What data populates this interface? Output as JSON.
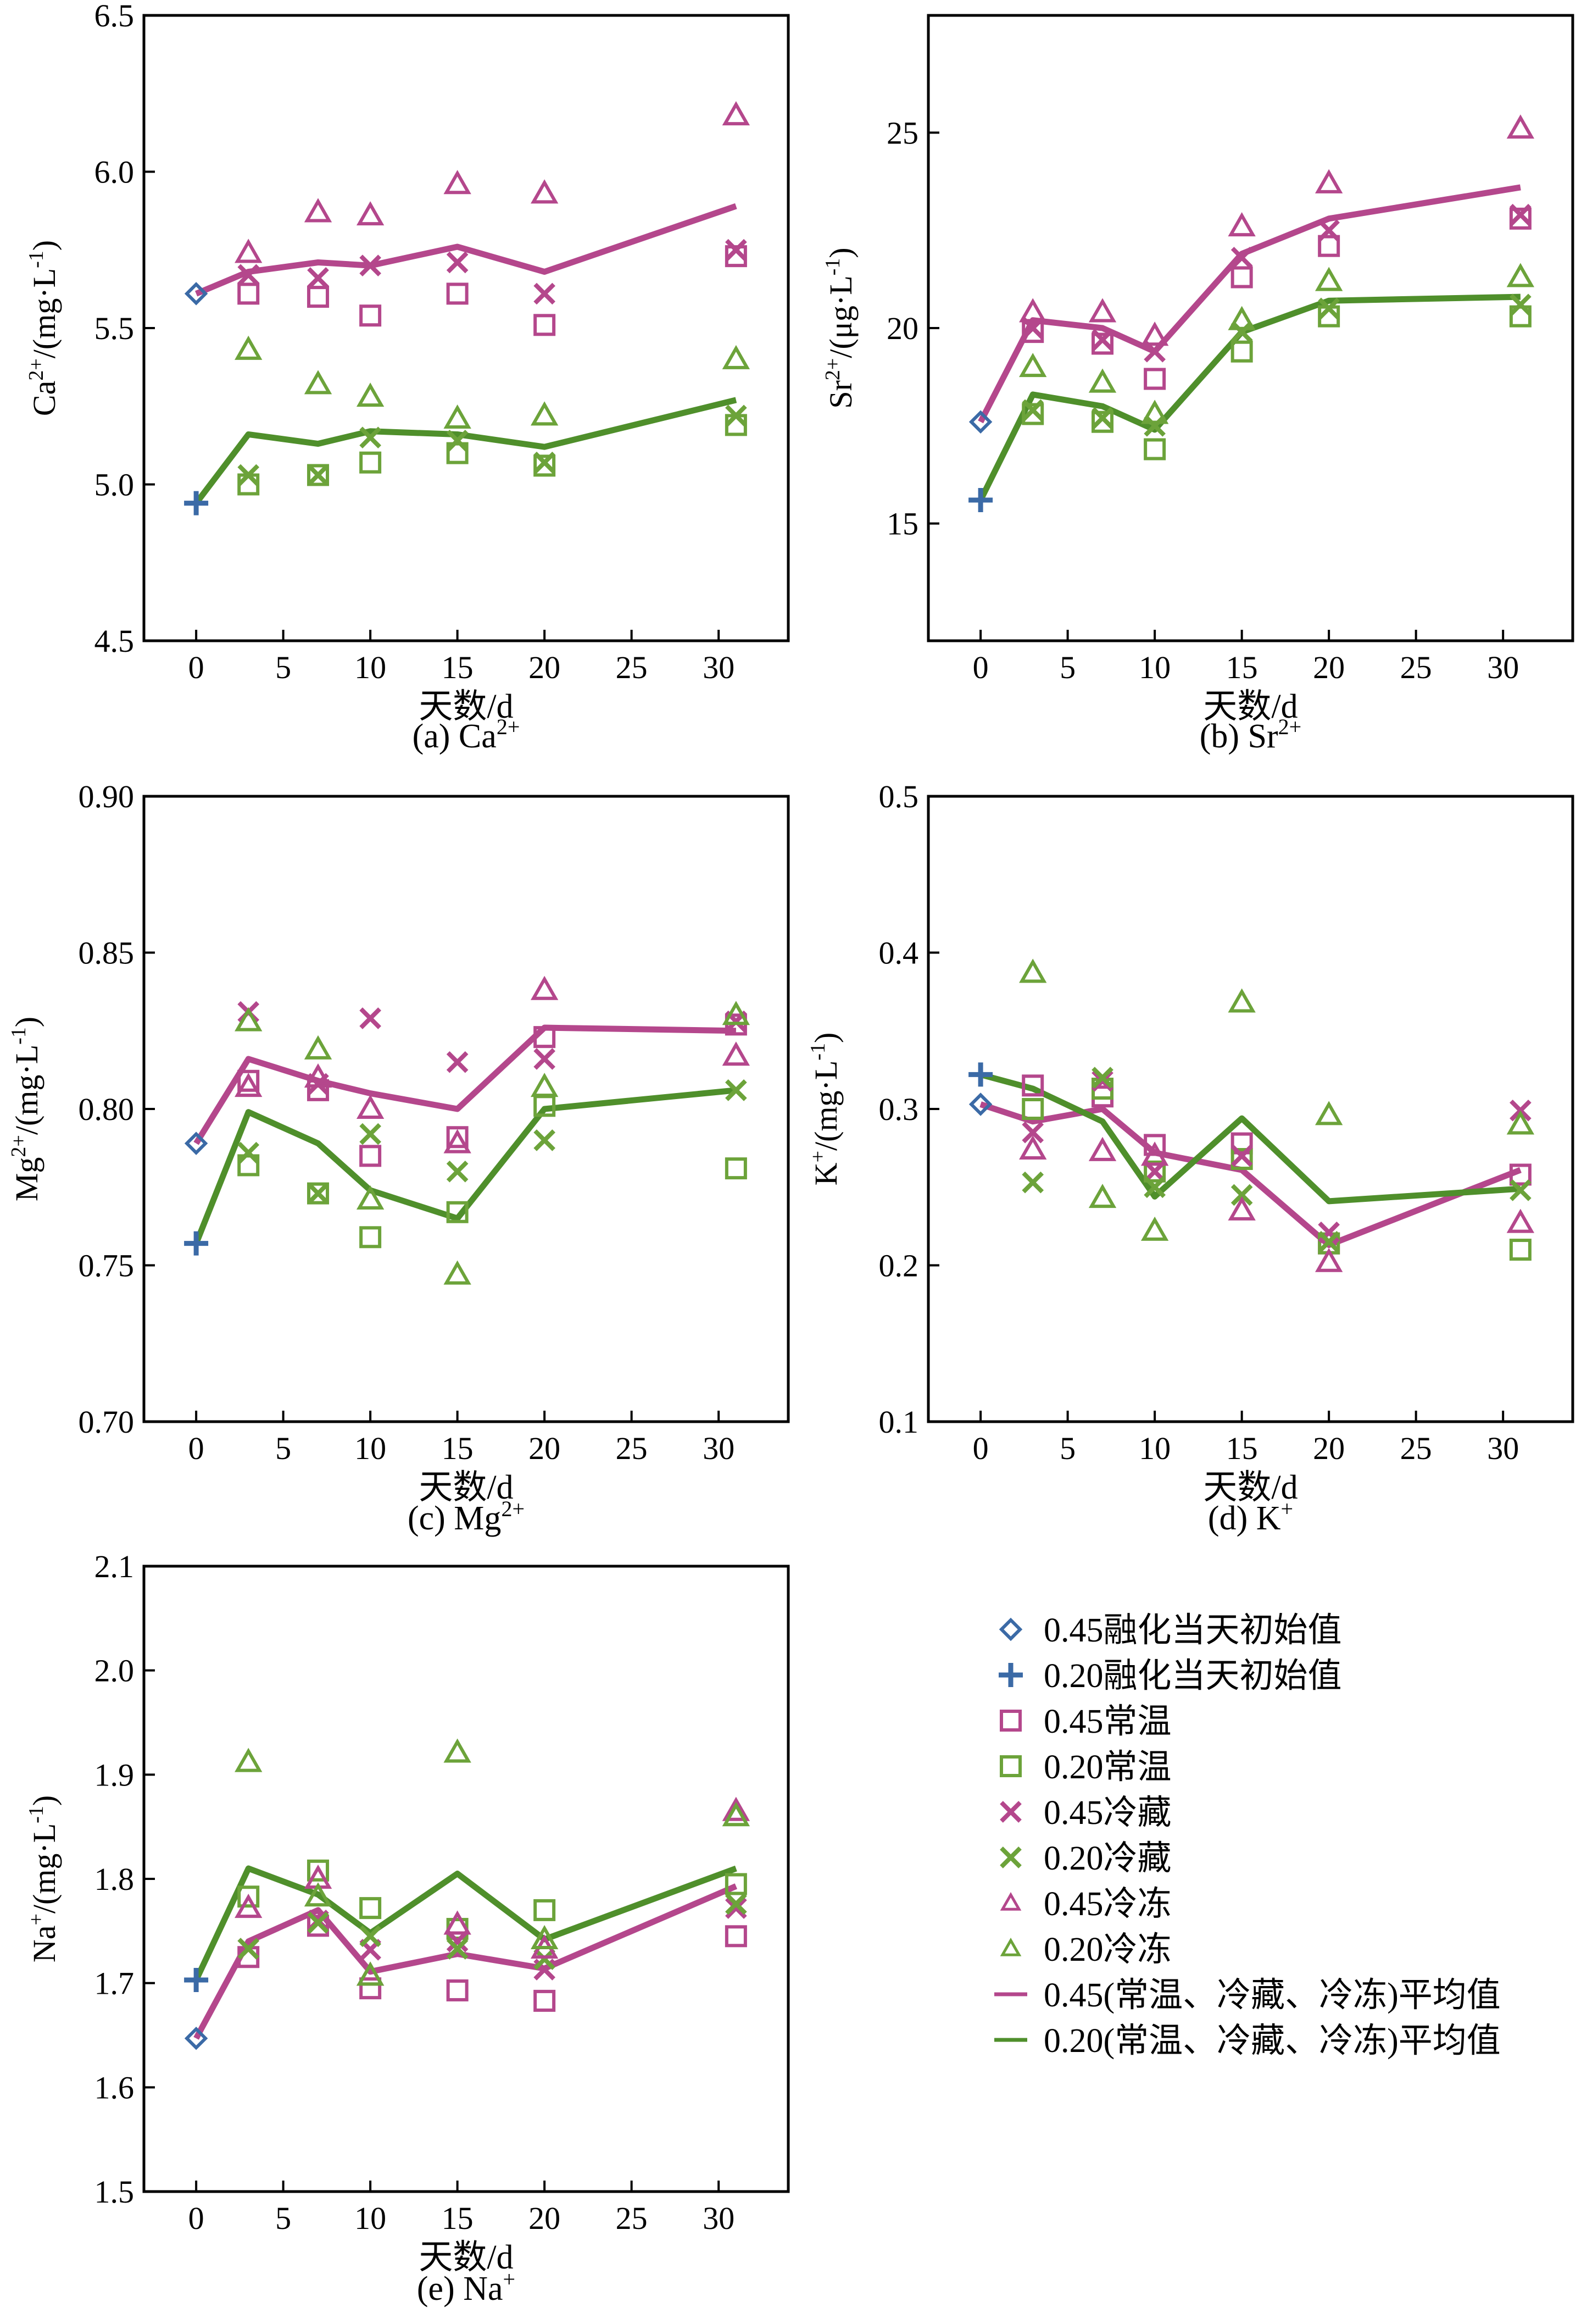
{
  "figure": {
    "xlabel": "天数/d",
    "x_ticks": [
      0,
      5,
      10,
      15,
      20,
      25,
      30
    ],
    "xlim": [
      -3,
      34
    ],
    "colors": {
      "c45": "#b4478c",
      "c20": "#6ca33a",
      "init45": "#3b6aa6",
      "init20": "#3b6aa6",
      "line45": "#b4478c",
      "line20": "#4f8f2b"
    }
  },
  "legend": {
    "items": [
      {
        "key": "init45",
        "label": "0.45融化当天初始值",
        "symbol": "diamond",
        "color": "#3b6aa6"
      },
      {
        "key": "init20",
        "label": "0.20融化当天初始值",
        "symbol": "plus",
        "color": "#3b6aa6"
      },
      {
        "key": "room45",
        "label": "0.45常温",
        "symbol": "square",
        "color": "#b4478c"
      },
      {
        "key": "room20",
        "label": "0.20常温",
        "symbol": "square",
        "color": "#6ca33a"
      },
      {
        "key": "fridge45",
        "label": "0.45冷藏",
        "symbol": "x",
        "color": "#b4478c"
      },
      {
        "key": "fridge20",
        "label": "0.20冷藏",
        "symbol": "x",
        "color": "#6ca33a"
      },
      {
        "key": "frozen45",
        "label": "0.45冷冻",
        "symbol": "triangle-small",
        "color": "#b4478c"
      },
      {
        "key": "frozen20",
        "label": "0.20冷冻",
        "symbol": "triangle-small",
        "color": "#6ca33a"
      },
      {
        "key": "avg45",
        "label": "0.45(常温、冷藏、冷冻)平均值",
        "symbol": "line",
        "color": "#b4478c"
      },
      {
        "key": "avg20",
        "label": "0.20(常温、冷藏、冷冻)平均值",
        "symbol": "line",
        "color": "#4f8f2b"
      }
    ]
  },
  "chart_data": [
    {
      "id": "a",
      "type": "scatter",
      "caption_main": "(a) Ca",
      "caption_sup": "2+",
      "ylabel_main": "Ca",
      "ylabel_sup": "2+",
      "ylabel_rest": "/(mg·L",
      "ylabel_sup2": "-1",
      "ylabel_end": ")",
      "ylim": [
        4.5,
        6.5
      ],
      "y_ticks": [
        "4.5",
        "5.0",
        "5.5",
        "6.0",
        "6.5"
      ],
      "x": [
        0,
        3,
        7,
        10,
        15,
        20,
        31
      ],
      "series": [
        {
          "key": "init45",
          "x": [
            0
          ],
          "values": [
            5.61
          ]
        },
        {
          "key": "init20",
          "x": [
            0
          ],
          "values": [
            4.94
          ]
        },
        {
          "key": "room45",
          "x": [
            3,
            7,
            10,
            15,
            20,
            31
          ],
          "values": [
            5.61,
            5.6,
            5.54,
            5.61,
            5.51,
            5.73
          ]
        },
        {
          "key": "room20",
          "x": [
            3,
            7,
            10,
            15,
            20,
            31
          ],
          "values": [
            5.0,
            5.03,
            5.07,
            5.1,
            5.06,
            5.19
          ]
        },
        {
          "key": "fridge45",
          "x": [
            3,
            7,
            10,
            15,
            20,
            31
          ],
          "values": [
            5.67,
            5.66,
            5.7,
            5.71,
            5.61,
            5.75
          ]
        },
        {
          "key": "fridge20",
          "x": [
            3,
            7,
            10,
            15,
            20,
            31
          ],
          "values": [
            5.03,
            5.03,
            5.15,
            5.14,
            5.07,
            5.22
          ]
        },
        {
          "key": "frozen45",
          "x": [
            3,
            7,
            10,
            15,
            20,
            31
          ],
          "values": [
            5.74,
            5.87,
            5.86,
            5.96,
            5.93,
            6.18
          ]
        },
        {
          "key": "frozen20",
          "x": [
            3,
            7,
            10,
            15,
            20,
            31
          ],
          "values": [
            5.43,
            5.32,
            5.28,
            5.21,
            5.22,
            5.4
          ]
        },
        {
          "key": "avg45",
          "x": [
            0,
            3,
            7,
            10,
            15,
            20,
            31
          ],
          "values": [
            5.61,
            5.68,
            5.71,
            5.7,
            5.76,
            5.68,
            5.89
          ]
        },
        {
          "key": "avg20",
          "x": [
            0,
            3,
            7,
            10,
            15,
            20,
            31
          ],
          "values": [
            4.94,
            5.16,
            5.13,
            5.17,
            5.16,
            5.12,
            5.27
          ]
        }
      ]
    },
    {
      "id": "b",
      "type": "scatter",
      "caption_main": "(b) Sr",
      "caption_sup": "2+",
      "ylabel_main": "Sr",
      "ylabel_sup": "2+",
      "ylabel_rest": "/(μg·L",
      "ylabel_sup2": "-1",
      "ylabel_end": ")",
      "ylim": [
        12,
        28
      ],
      "y_ticks": [
        "15",
        "20",
        "25"
      ],
      "y_tick_values": [
        15,
        20,
        25
      ],
      "x": [
        0,
        3,
        7,
        10,
        15,
        20,
        31
      ],
      "series": [
        {
          "key": "init45",
          "x": [
            0
          ],
          "values": [
            17.6
          ]
        },
        {
          "key": "init20",
          "x": [
            0
          ],
          "values": [
            15.6
          ]
        },
        {
          "key": "room45",
          "x": [
            3,
            7,
            10,
            15,
            20,
            31
          ],
          "values": [
            19.9,
            19.6,
            18.7,
            21.3,
            22.1,
            22.8
          ]
        },
        {
          "key": "room20",
          "x": [
            3,
            7,
            10,
            15,
            20,
            31
          ],
          "values": [
            17.8,
            17.6,
            16.9,
            19.4,
            20.3,
            20.3
          ]
        },
        {
          "key": "fridge45",
          "x": [
            3,
            7,
            10,
            15,
            20,
            31
          ],
          "values": [
            20.0,
            19.7,
            19.4,
            21.8,
            22.5,
            22.9
          ]
        },
        {
          "key": "fridge20",
          "x": [
            3,
            7,
            10,
            15,
            20,
            31
          ],
          "values": [
            17.9,
            17.7,
            17.5,
            19.9,
            20.5,
            20.6
          ]
        },
        {
          "key": "frozen45",
          "x": [
            3,
            7,
            10,
            15,
            20,
            31
          ],
          "values": [
            20.4,
            20.4,
            19.8,
            22.6,
            23.7,
            25.1
          ]
        },
        {
          "key": "frozen20",
          "x": [
            3,
            7,
            10,
            15,
            20,
            31
          ],
          "values": [
            19.0,
            18.6,
            17.8,
            20.2,
            21.2,
            21.3
          ]
        },
        {
          "key": "avg45",
          "x": [
            0,
            3,
            7,
            10,
            15,
            20,
            31
          ],
          "values": [
            17.6,
            20.2,
            20.0,
            19.4,
            21.9,
            22.8,
            23.6
          ]
        },
        {
          "key": "avg20",
          "x": [
            0,
            3,
            7,
            10,
            15,
            20,
            31
          ],
          "values": [
            15.6,
            18.3,
            18.0,
            17.4,
            19.9,
            20.7,
            20.8
          ]
        }
      ]
    },
    {
      "id": "c",
      "type": "scatter",
      "caption_main": "(c) Mg",
      "caption_sup": "2+",
      "ylabel_main": "Mg",
      "ylabel_sup": "2+",
      "ylabel_rest": "/(mg·L",
      "ylabel_sup2": "-1",
      "ylabel_end": ")",
      "ylim": [
        0.7,
        0.9
      ],
      "y_ticks": [
        "0.70",
        "0.75",
        "0.80",
        "0.85",
        "0.90"
      ],
      "x": [
        0,
        3,
        7,
        10,
        15,
        20,
        31
      ],
      "series": [
        {
          "key": "init45",
          "x": [
            0
          ],
          "values": [
            0.789
          ]
        },
        {
          "key": "init20",
          "x": [
            0
          ],
          "values": [
            0.757
          ]
        },
        {
          "key": "room45",
          "x": [
            3,
            7,
            10,
            15,
            20,
            31
          ],
          "values": [
            0.809,
            0.806,
            0.785,
            0.791,
            0.823,
            0.827
          ]
        },
        {
          "key": "room20",
          "x": [
            3,
            7,
            10,
            15,
            20,
            31
          ],
          "values": [
            0.782,
            0.773,
            0.759,
            0.767,
            0.801,
            0.781
          ]
        },
        {
          "key": "fridge45",
          "x": [
            3,
            7,
            10,
            15,
            20,
            31
          ],
          "values": [
            0.831,
            0.808,
            0.829,
            0.815,
            0.816,
            0.828
          ]
        },
        {
          "key": "fridge20",
          "x": [
            3,
            7,
            10,
            15,
            20,
            31
          ],
          "values": [
            0.786,
            0.773,
            0.792,
            0.78,
            0.79,
            0.806
          ]
        },
        {
          "key": "frozen45",
          "x": [
            3,
            7,
            10,
            15,
            20,
            31
          ],
          "values": [
            0.807,
            0.81,
            0.8,
            0.789,
            0.838,
            0.817
          ]
        },
        {
          "key": "frozen20",
          "x": [
            3,
            7,
            10,
            15,
            20,
            31
          ],
          "values": [
            0.828,
            0.819,
            0.771,
            0.747,
            0.807,
            0.83
          ]
        },
        {
          "key": "avg45",
          "x": [
            0,
            3,
            7,
            10,
            15,
            20,
            31
          ],
          "values": [
            0.789,
            0.816,
            0.809,
            0.805,
            0.8,
            0.826,
            0.825
          ]
        },
        {
          "key": "avg20",
          "x": [
            0,
            3,
            7,
            10,
            15,
            20,
            31
          ],
          "values": [
            0.757,
            0.799,
            0.789,
            0.774,
            0.765,
            0.8,
            0.806
          ]
        }
      ]
    },
    {
      "id": "d",
      "type": "scatter",
      "caption_main": "(d) K",
      "caption_sup": "+",
      "ylabel_main": "K",
      "ylabel_sup": "+",
      "ylabel_rest": "/(mg·L",
      "ylabel_sup2": "-1",
      "ylabel_end": ")",
      "ylim": [
        0.1,
        0.5
      ],
      "y_ticks": [
        "0.1",
        "0.2",
        "0.3",
        "0.4",
        "0.5"
      ],
      "x": [
        0,
        3,
        7,
        10,
        15,
        20,
        31
      ],
      "series": [
        {
          "key": "init45",
          "x": [
            0
          ],
          "values": [
            0.303
          ]
        },
        {
          "key": "init20",
          "x": [
            0
          ],
          "values": [
            0.322
          ]
        },
        {
          "key": "room45",
          "x": [
            3,
            7,
            10,
            15,
            20,
            31
          ],
          "values": [
            0.315,
            0.308,
            0.277,
            0.278,
            0.214,
            0.258
          ]
        },
        {
          "key": "room20",
          "x": [
            3,
            7,
            10,
            15,
            20,
            31
          ],
          "values": [
            0.3,
            0.313,
            0.26,
            0.268,
            0.214,
            0.21
          ]
        },
        {
          "key": "fridge45",
          "x": [
            3,
            7,
            10,
            15,
            20,
            31
          ],
          "values": [
            0.285,
            0.318,
            0.26,
            0.27,
            0.221,
            0.299
          ]
        },
        {
          "key": "fridge20",
          "x": [
            3,
            7,
            10,
            15,
            20,
            31
          ],
          "values": [
            0.253,
            0.32,
            0.25,
            0.245,
            0.215,
            0.248
          ]
        },
        {
          "key": "frozen45",
          "x": [
            3,
            7,
            10,
            15,
            20,
            31
          ],
          "values": [
            0.274,
            0.273,
            0.27,
            0.235,
            0.202,
            0.227
          ]
        },
        {
          "key": "frozen20",
          "x": [
            3,
            7,
            10,
            15,
            20,
            31
          ],
          "values": [
            0.387,
            0.243,
            0.222,
            0.368,
            0.296,
            0.29
          ]
        },
        {
          "key": "avg45",
          "x": [
            0,
            3,
            7,
            10,
            15,
            20,
            31
          ],
          "values": [
            0.303,
            0.292,
            0.3,
            0.272,
            0.261,
            0.213,
            0.261
          ]
        },
        {
          "key": "avg20",
          "x": [
            0,
            3,
            7,
            10,
            15,
            20,
            31
          ],
          "values": [
            0.322,
            0.313,
            0.292,
            0.244,
            0.294,
            0.241,
            0.249
          ]
        }
      ]
    },
    {
      "id": "e",
      "type": "scatter",
      "caption_main": "(e) Na",
      "caption_sup": "+",
      "ylabel_main": "Na",
      "ylabel_sup": "+",
      "ylabel_rest": "/(mg·L",
      "ylabel_sup2": "-1",
      "ylabel_end": ")",
      "ylim": [
        1.5,
        2.1
      ],
      "y_ticks": [
        "1.5",
        "1.6",
        "1.7",
        "1.8",
        "1.9",
        "2.0",
        "2.1"
      ],
      "x": [
        0,
        3,
        7,
        10,
        15,
        20,
        31
      ],
      "series": [
        {
          "key": "init45",
          "x": [
            0
          ],
          "values": [
            1.647
          ]
        },
        {
          "key": "init20",
          "x": [
            0
          ],
          "values": [
            1.703
          ]
        },
        {
          "key": "room45",
          "x": [
            3,
            7,
            10,
            15,
            20,
            31
          ],
          "values": [
            1.725,
            1.755,
            1.695,
            1.693,
            1.683,
            1.745
          ]
        },
        {
          "key": "room20",
          "x": [
            3,
            7,
            10,
            15,
            20,
            31
          ],
          "values": [
            1.783,
            1.808,
            1.772,
            1.752,
            1.77,
            1.795
          ]
        },
        {
          "key": "fridge45",
          "x": [
            3,
            7,
            10,
            15,
            20,
            31
          ],
          "values": [
            1.733,
            1.76,
            1.732,
            1.74,
            1.713,
            1.772
          ]
        },
        {
          "key": "fridge20",
          "x": [
            3,
            7,
            10,
            15,
            20,
            31
          ],
          "values": [
            1.733,
            1.758,
            1.745,
            1.733,
            1.723,
            1.776
          ]
        },
        {
          "key": "frozen45",
          "x": [
            3,
            7,
            10,
            15,
            20,
            31
          ],
          "values": [
            1.772,
            1.8,
            1.707,
            1.756,
            1.733,
            1.865
          ]
        },
        {
          "key": "frozen20",
          "x": [
            3,
            7,
            10,
            15,
            20,
            31
          ],
          "values": [
            1.912,
            1.783,
            1.707,
            1.921,
            1.742,
            1.86
          ]
        },
        {
          "key": "avg45",
          "x": [
            0,
            3,
            7,
            10,
            15,
            20,
            31
          ],
          "values": [
            1.647,
            1.74,
            1.77,
            1.711,
            1.728,
            1.714,
            1.793
          ]
        },
        {
          "key": "avg20",
          "x": [
            0,
            3,
            7,
            10,
            15,
            20,
            31
          ],
          "values": [
            1.703,
            1.81,
            1.785,
            1.748,
            1.805,
            1.742,
            1.81
          ]
        }
      ]
    }
  ]
}
